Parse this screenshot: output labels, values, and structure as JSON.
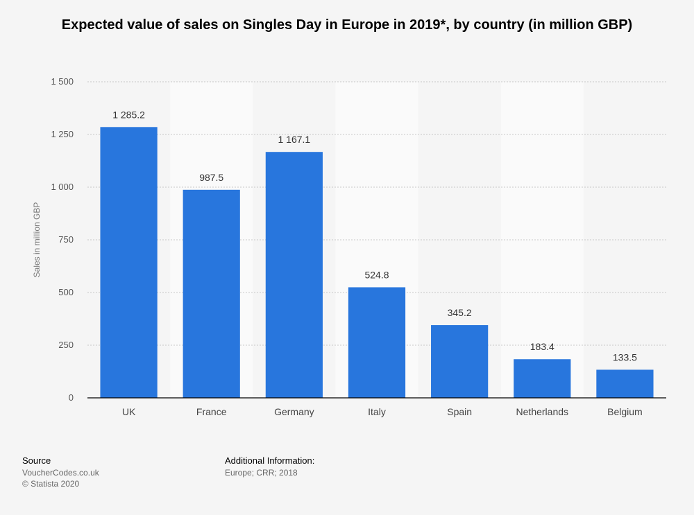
{
  "chart_data": {
    "type": "bar",
    "title": "Expected value of sales on Singles Day in Europe in 2019*, by country (in million GBP)",
    "xlabel": "",
    "ylabel": "Sales in million GBP",
    "categories": [
      "UK",
      "France",
      "Germany",
      "Italy",
      "Spain",
      "Netherlands",
      "Belgium"
    ],
    "values": [
      1285.2,
      987.5,
      1167.1,
      524.8,
      345.2,
      183.4,
      133.5
    ],
    "value_labels": [
      "1 285.2",
      "987.5",
      "1 167.1",
      "524.8",
      "345.2",
      "183.4",
      "133.5"
    ],
    "ylim": [
      0,
      1500
    ],
    "yticks": [
      0,
      250,
      500,
      750,
      1000,
      1250,
      1500
    ],
    "ytick_labels": [
      "0",
      "250",
      "500",
      "750",
      "1 000",
      "1 250",
      "1 500"
    ],
    "grid": true,
    "bar_color": "#2876dd"
  },
  "footer": {
    "source_heading": "Source",
    "source_lines": [
      "VoucherCodes.co.uk",
      "© Statista 2020"
    ],
    "info_heading": "Additional Information:",
    "info_lines": [
      "Europe; CRR; 2018"
    ]
  }
}
